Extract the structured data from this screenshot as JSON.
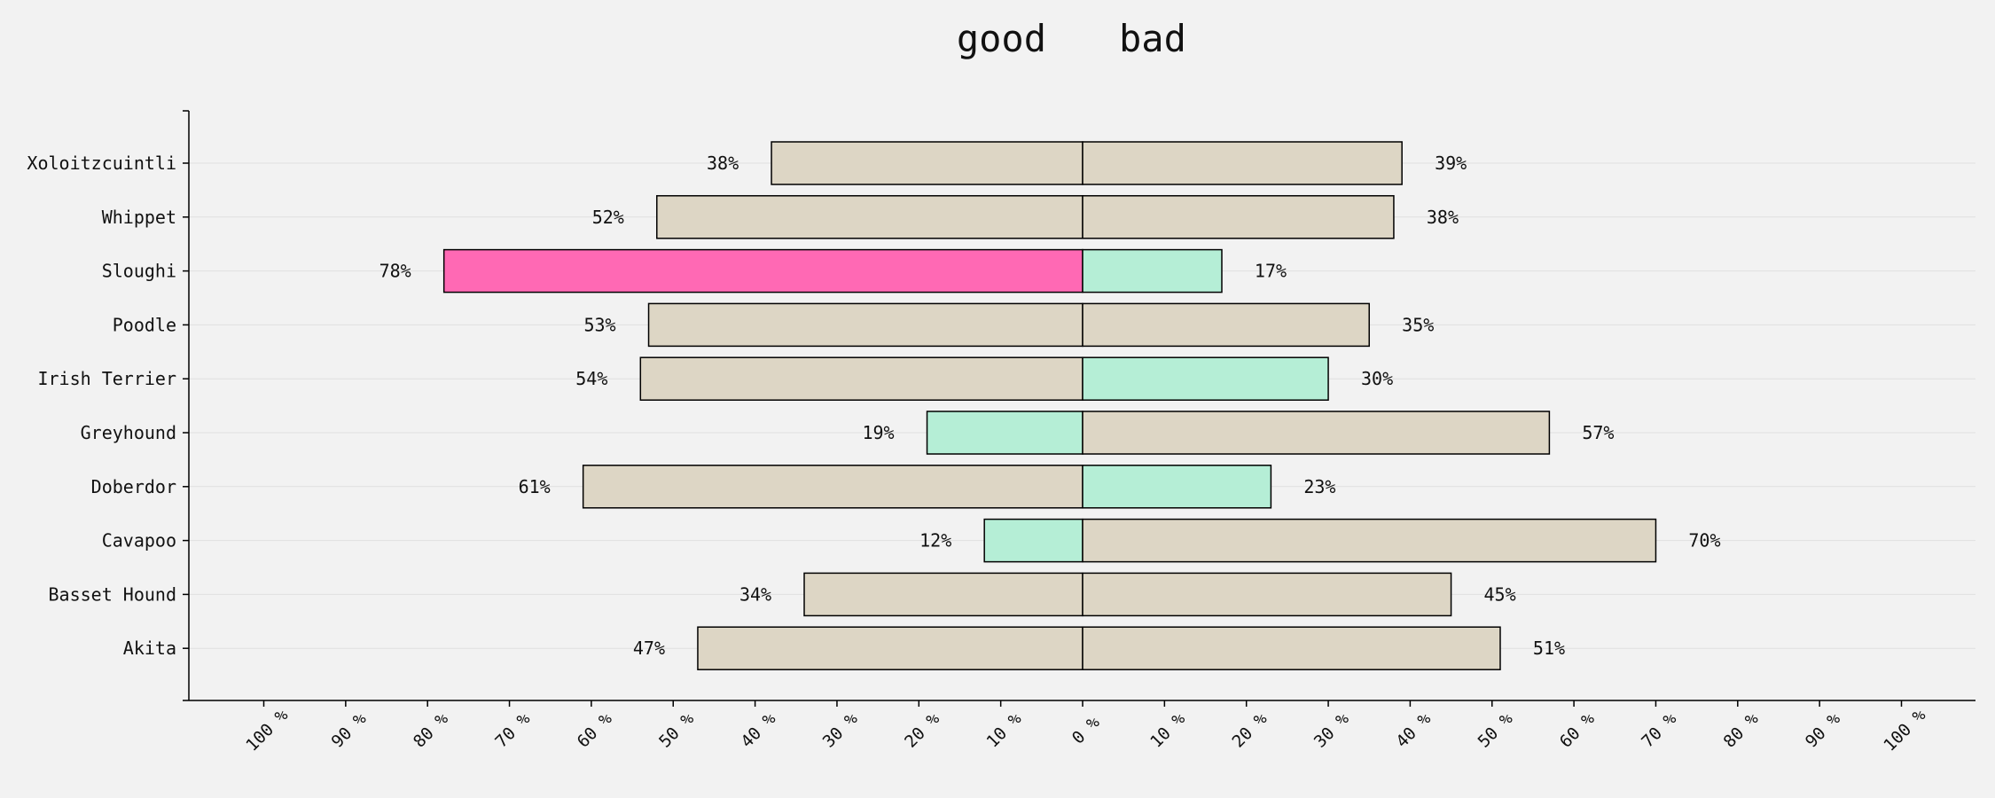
{
  "legend": {
    "left": "good",
    "right": "bad"
  },
  "colors": {
    "background": "#f2f2f2",
    "neutral": "#ddd6c5",
    "low": "#b5eed6",
    "high": "#ff69b4",
    "edge": "#000000",
    "grid": "#e0e0e0"
  },
  "chart_data": {
    "type": "bar",
    "orientation": "diverging-horizontal",
    "categories": [
      "Xoloitzcuintli",
      "Whippet",
      "Sloughi",
      "Poodle",
      "Irish Terrier",
      "Greyhound",
      "Doberdor",
      "Cavapoo",
      "Basset Hound",
      "Akita"
    ],
    "series": [
      {
        "name": "good",
        "values": [
          38,
          52,
          78,
          53,
          54,
          19,
          61,
          12,
          34,
          47
        ],
        "labels": [
          "38%",
          "52%",
          "78%",
          "53%",
          "54%",
          "19%",
          "61%",
          "12%",
          "34%",
          "47%"
        ],
        "colors": [
          "#ddd6c5",
          "#ddd6c5",
          "#ff69b4",
          "#ddd6c5",
          "#ddd6c5",
          "#b5eed6",
          "#ddd6c5",
          "#b5eed6",
          "#ddd6c5",
          "#ddd6c5"
        ]
      },
      {
        "name": "bad",
        "values": [
          39,
          38,
          17,
          35,
          30,
          57,
          23,
          70,
          45,
          51
        ],
        "labels": [
          "39%",
          "38%",
          "17%",
          "35%",
          "30%",
          "57%",
          "23%",
          "70%",
          "45%",
          "51%"
        ],
        "colors": [
          "#ddd6c5",
          "#ddd6c5",
          "#b5eed6",
          "#ddd6c5",
          "#b5eed6",
          "#ddd6c5",
          "#b5eed6",
          "#ddd6c5",
          "#ddd6c5",
          "#ddd6c5"
        ]
      }
    ],
    "xlim": [
      -100,
      100
    ],
    "xticks": [
      -100,
      -90,
      -80,
      -70,
      -60,
      -50,
      -40,
      -30,
      -20,
      -10,
      0,
      10,
      20,
      30,
      40,
      50,
      60,
      70,
      80,
      90,
      100
    ],
    "xtick_labels": [
      "100 %",
      "90 %",
      "80 %",
      "70 %",
      "60 %",
      "50 %",
      "40 %",
      "30 %",
      "20 %",
      "10 %",
      "0 %",
      "10 %",
      "20 %",
      "30 %",
      "40 %",
      "50 %",
      "60 %",
      "70 %",
      "80 %",
      "90 %",
      "100 %"
    ],
    "grid": "horizontal",
    "legend_position": "top-center"
  }
}
